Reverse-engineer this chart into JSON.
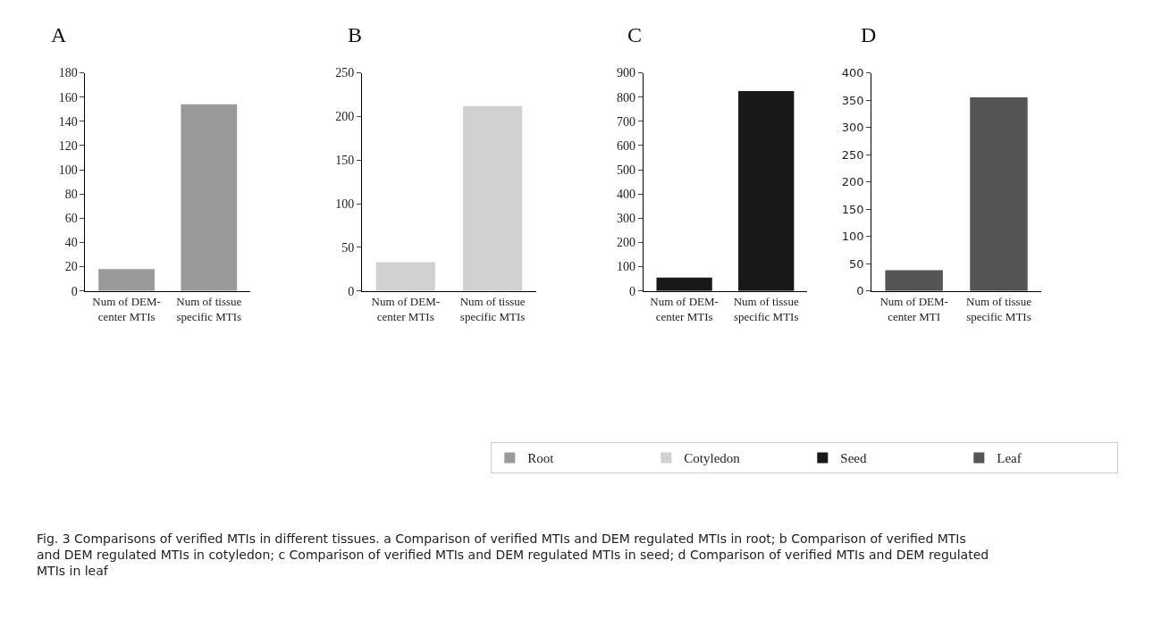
{
  "chart_data": [
    {
      "type": "bar",
      "title": "A",
      "categories": [
        "Num of DEM-\ncenter MTIs",
        "Num of tissue\nspecific MTIs"
      ],
      "series": [
        {
          "name": "Root",
          "color": "#999999",
          "values": [
            18,
            154
          ]
        }
      ],
      "ylim": [
        0,
        180
      ],
      "yticks": [
        0,
        20,
        40,
        60,
        80,
        100,
        120,
        140,
        160,
        180
      ],
      "legend": "bottom right",
      "annotations": [
        "Fig. 3 Comparisons of verified MTIs in different tissues. a Comparison of verified MTIs and DEM regulated MTIs in root; b Comparison of verified MTIs and DEM regulated MTIs in cotyledon; c Comparison of verified MTIs and DEM regulated MTIs in seed; d Comparison of verified MTIs and DEM regulated MTIs in leaf"
      ]
    },
    {
      "type": "bar",
      "title": "B",
      "categories": [
        "Num of DEM-\ncenter MTIs",
        "Num of tissue\nspecific MTIs"
      ],
      "series": [
        {
          "name": "Cotyledon",
          "color": "#d0d1d0",
          "values": [
            33,
            212
          ]
        }
      ],
      "ylim": [
        0,
        250
      ],
      "yticks": [
        0,
        50,
        100,
        150,
        200,
        250
      ],
      "legend": "bottom right"
    },
    {
      "type": "bar",
      "title": "C",
      "categories": [
        "Num of DEM-\ncenter MTIs",
        "Num of tissue\nspecific MTIs"
      ],
      "series": [
        {
          "name": "Seed",
          "color": "#181818",
          "values": [
            55,
            825
          ]
        }
      ],
      "ylim": [
        0,
        900
      ],
      "yticks": [
        0,
        100,
        200,
        300,
        400,
        500,
        600,
        700,
        800,
        900
      ],
      "legend": "bottom right"
    },
    {
      "type": "bar",
      "title": "D",
      "categories": [
        "Num of DEM-\ncenter MTI",
        "Num of tissue\nspecific MTIs"
      ],
      "series": [
        {
          "name": "Leaf",
          "color": "#555555",
          "values": [
            38,
            355
          ]
        }
      ],
      "ylim": [
        0,
        400
      ],
      "yticks": [
        0,
        50,
        100,
        150,
        200,
        250,
        300,
        350,
        400
      ],
      "legend": "bottom right"
    }
  ]
}
